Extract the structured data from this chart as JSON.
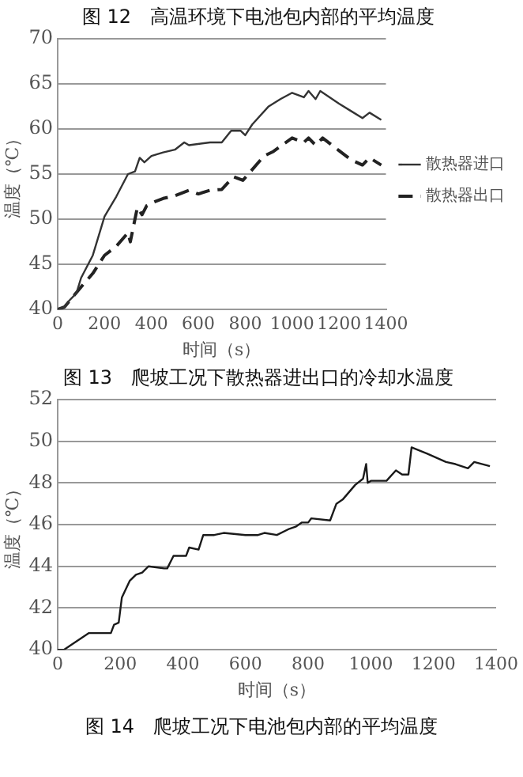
{
  "chart_data": [
    {
      "type": "line",
      "title": "图 12　高温环境下电池包内部的平均温度",
      "xlabel": "时间（s）",
      "ylabel": "温度（℃）",
      "xlim": [
        0,
        1400
      ],
      "xticks": [
        0,
        200,
        400,
        600,
        800,
        1000,
        1200,
        1400
      ],
      "ylim": [
        40,
        70
      ],
      "yticks": [
        40,
        45,
        50,
        55,
        60,
        65,
        70
      ],
      "grid": "y",
      "legend": "right",
      "marker": "none",
      "series": [
        {
          "name": "散热器进口",
          "color": "#333333",
          "line_style": "solid",
          "x": [
            0,
            30,
            50,
            80,
            100,
            150,
            200,
            250,
            300,
            330,
            350,
            370,
            400,
            450,
            500,
            540,
            560,
            650,
            700,
            740,
            780,
            800,
            830,
            900,
            950,
            1000,
            1050,
            1070,
            1100,
            1120,
            1200,
            1250,
            1300,
            1330,
            1380
          ],
          "values": [
            40,
            40.3,
            41,
            41.8,
            43.5,
            46,
            50.3,
            52.5,
            55,
            55.3,
            56.8,
            56.3,
            57,
            57.4,
            57.7,
            58.5,
            58.2,
            58.5,
            58.5,
            59.8,
            59.8,
            59.3,
            60.5,
            62.5,
            63.3,
            64,
            63.5,
            64.2,
            63.3,
            64.2,
            62.8,
            62,
            61.2,
            61.8,
            61
          ]
        },
        {
          "name": "散热器出口",
          "color": "#222222",
          "line_style": "dashed",
          "x": [
            0,
            30,
            100,
            150,
            200,
            250,
            300,
            310,
            340,
            360,
            380,
            400,
            450,
            500,
            560,
            600,
            650,
            700,
            750,
            790,
            820,
            880,
            920,
            1000,
            1050,
            1070,
            1100,
            1130,
            1200,
            1250,
            1300,
            1330,
            1380
          ],
          "values": [
            40,
            40.3,
            42.5,
            44,
            46,
            47,
            48.5,
            47.5,
            51.3,
            50.5,
            51.5,
            51.8,
            52.3,
            52.6,
            53.2,
            52.8,
            53.2,
            53.3,
            54.7,
            54.3,
            55.2,
            57,
            57.5,
            59,
            58.5,
            59,
            58.2,
            59,
            57.6,
            56.6,
            56,
            56.8,
            56
          ]
        }
      ]
    },
    {
      "type": "line",
      "title": "图 13　爬坡工况下散热器进出口的冷却水温度",
      "xlabel": "时间（s）",
      "ylabel": "温度（℃）",
      "xlim": [
        0,
        1400
      ],
      "xticks": [
        0,
        200,
        400,
        600,
        800,
        1000,
        1200,
        1400
      ],
      "ylim": [
        40,
        52
      ],
      "yticks": [
        40,
        42,
        44,
        46,
        48,
        50,
        52
      ],
      "grid": "y",
      "legend": false,
      "marker": "none",
      "annotations": [
        "图 14　爬坡工况下电池包内部的平均温度"
      ],
      "series": [
        {
          "color": "#1a1a1a",
          "line_style": "solid",
          "x": [
            0,
            20,
            50,
            100,
            170,
            180,
            195,
            205,
            230,
            250,
            270,
            290,
            340,
            350,
            370,
            410,
            420,
            450,
            465,
            500,
            530,
            600,
            640,
            660,
            700,
            740,
            760,
            780,
            800,
            810,
            870,
            890,
            910,
            950,
            975,
            985,
            990,
            1000,
            1050,
            1080,
            1100,
            1120,
            1130,
            1180,
            1240,
            1270,
            1310,
            1330,
            1380
          ],
          "values": [
            40,
            40,
            40.3,
            40.8,
            40.8,
            41.2,
            41.3,
            42.5,
            43.3,
            43.6,
            43.7,
            44,
            43.9,
            43.9,
            44.5,
            44.5,
            44.9,
            44.8,
            45.5,
            45.5,
            45.6,
            45.5,
            45.5,
            45.6,
            45.5,
            45.8,
            45.9,
            46.1,
            46.1,
            46.3,
            46.2,
            47,
            47.2,
            47.9,
            48.2,
            48.9,
            48,
            48.1,
            48.1,
            48.6,
            48.4,
            48.4,
            49.7,
            49.4,
            49,
            48.9,
            48.7,
            49,
            48.8
          ]
        }
      ]
    }
  ]
}
